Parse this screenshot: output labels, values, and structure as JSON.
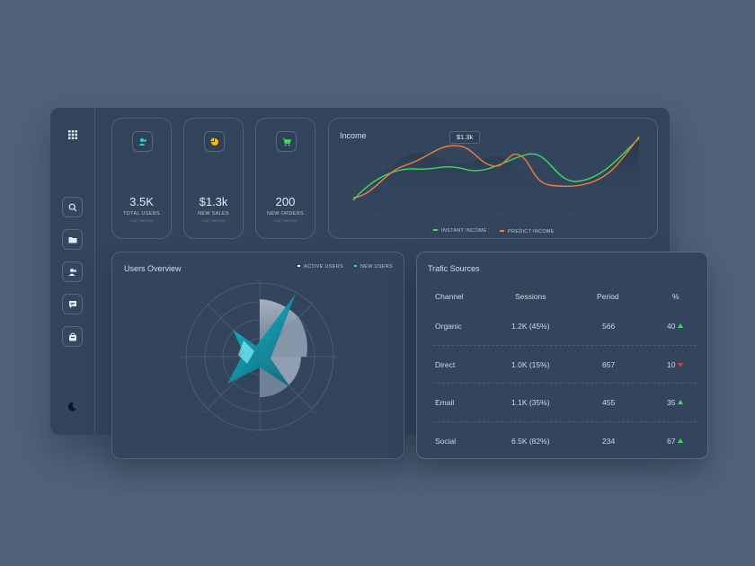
{
  "colors": {
    "accent_green": "#3ddc5f",
    "accent_orange": "#f07f3c",
    "accent_cyan": "#22d3e6",
    "accent_yellow": "#f5b70a",
    "up": "#3ddc5f",
    "down": "#e23a3a"
  },
  "sidebar": {
    "items": [
      {
        "icon": "search-icon"
      },
      {
        "icon": "folder-icon"
      },
      {
        "icon": "users-icon"
      },
      {
        "icon": "chat-icon"
      },
      {
        "icon": "bag-icon"
      }
    ],
    "theme_icon": "moon-icon"
  },
  "stats": [
    {
      "icon": "users-icon",
      "value": "3.5K",
      "label": "TOTAL USERS",
      "sub": "LAST MONTH"
    },
    {
      "icon": "pie-chart-icon",
      "value": "$1.3k",
      "label": "NEW SALES",
      "sub": "LAST MONTH"
    },
    {
      "icon": "cart-icon",
      "value": "200",
      "label": "NEW ORDERS",
      "sub": "LAST MONTH"
    }
  ],
  "income": {
    "title": "Income",
    "tooltip": "$1.3k",
    "legend": [
      "INSTANT INCOME",
      "PREDICT INCOME"
    ]
  },
  "users_overview": {
    "title": "Users Overview",
    "legend": [
      "ACTIVE USERS",
      "NEW USERS"
    ]
  },
  "traffic": {
    "title": "Trafic Sources",
    "headers": [
      "Channel",
      "Sessions",
      "Period",
      "%"
    ],
    "rows": [
      {
        "channel": "Organic",
        "sessions": "1.2K (45%)",
        "period": "566",
        "pct": "40",
        "trend": "up"
      },
      {
        "channel": "Direct",
        "sessions": "1.0K (15%)",
        "period": "657",
        "pct": "10",
        "trend": "down"
      },
      {
        "channel": "Email",
        "sessions": "1.1K (35%)",
        "period": "455",
        "pct": "35",
        "trend": "up"
      },
      {
        "channel": "Social",
        "sessions": "6.5K (82%)",
        "period": "234",
        "pct": "67",
        "trend": "up"
      }
    ]
  }
}
